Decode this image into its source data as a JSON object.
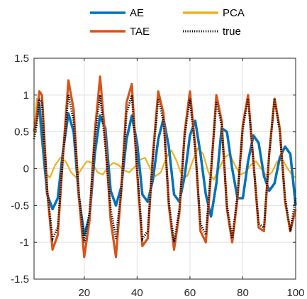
{
  "chart_data": {
    "type": "line",
    "title": "",
    "xlabel": "",
    "ylabel": "",
    "xlim": [
      1,
      100
    ],
    "ylim": [
      -1.5,
      1.5
    ],
    "xticks": [
      20,
      40,
      60,
      80,
      100
    ],
    "yticks": [
      -1.5,
      -1,
      -0.5,
      0,
      0.5,
      1,
      1.5
    ],
    "xtick_labels": [
      "20",
      "40",
      "60",
      "80",
      "100"
    ],
    "ytick_labels": [
      "-1.5",
      "-1",
      "-0.5",
      "0",
      "0.5",
      "1",
      "1.5"
    ],
    "grid": true,
    "legend_placement": "top-center",
    "series": [
      {
        "name": "AE",
        "color": "#0072BD",
        "x": [
          1,
          3,
          4,
          6,
          8,
          10,
          12,
          14,
          16,
          18,
          20,
          22,
          24,
          26,
          28,
          30,
          32,
          34,
          36,
          38,
          40,
          42,
          44,
          46,
          48,
          50,
          52,
          54,
          56,
          58,
          60,
          62,
          64,
          66,
          68,
          70,
          72,
          74,
          76,
          78,
          80,
          82,
          84,
          86,
          88,
          90,
          92,
          94,
          96,
          98,
          100
        ],
        "y": [
          0.5,
          0.88,
          0.45,
          -0.35,
          -0.55,
          -0.4,
          0.25,
          0.75,
          0.5,
          -0.4,
          -0.9,
          -0.65,
          0.2,
          0.72,
          0.55,
          -0.3,
          -0.5,
          -0.25,
          0.4,
          0.72,
          0.35,
          -0.35,
          -0.45,
          -0.15,
          0.4,
          0.68,
          0.3,
          -0.35,
          -0.45,
          -0.1,
          0.45,
          0.65,
          0.2,
          -0.35,
          -0.65,
          -0.2,
          0.55,
          0.5,
          0.0,
          -0.4,
          -0.4,
          0.1,
          0.45,
          0.35,
          -0.1,
          -0.3,
          -0.2,
          0.15,
          0.3,
          0.2,
          -0.5
        ]
      },
      {
        "name": "PCA",
        "color": "#EDB120",
        "x": [
          1,
          2,
          3,
          5,
          7,
          9,
          11,
          13,
          15,
          17,
          19,
          21,
          23,
          25,
          27,
          29,
          31,
          33,
          35,
          37,
          39,
          41,
          43,
          45,
          47,
          49,
          51,
          53,
          55,
          57,
          59,
          61,
          63,
          65,
          67,
          69,
          71,
          73,
          75,
          77,
          79,
          81,
          83,
          85,
          87,
          89,
          91,
          93,
          95,
          97,
          99,
          100
        ],
        "y": [
          0.45,
          0.95,
          0.7,
          -0.05,
          -0.12,
          0.05,
          0.15,
          0.1,
          -0.05,
          -0.12,
          0.0,
          0.1,
          0.08,
          -0.05,
          -0.08,
          0.02,
          0.08,
          0.05,
          -0.02,
          -0.05,
          0.02,
          0.12,
          0.15,
          0.0,
          -0.1,
          -0.05,
          0.15,
          0.25,
          0.1,
          -0.1,
          -0.1,
          0.1,
          0.28,
          0.2,
          -0.05,
          -0.15,
          0.0,
          0.15,
          0.2,
          0.05,
          -0.08,
          -0.05,
          0.05,
          0.1,
          0.0,
          -0.1,
          -0.05,
          0.1,
          0.12,
          0.0,
          -0.1,
          -0.12
        ]
      },
      {
        "name": "TAE",
        "color": "#D95319",
        "x": [
          1,
          2,
          3,
          4,
          6,
          8,
          10,
          12,
          14,
          16,
          18,
          20,
          22,
          24,
          26,
          28,
          30,
          32,
          34,
          36,
          38,
          40,
          42,
          44,
          46,
          48,
          50,
          52,
          54,
          56,
          58,
          60,
          62,
          64,
          66,
          68,
          70,
          72,
          74,
          76,
          78,
          80,
          82,
          84,
          86,
          88,
          90,
          92,
          94,
          96,
          98,
          100
        ],
        "y": [
          0.5,
          0.7,
          1.05,
          1.0,
          -0.3,
          -1.1,
          -0.9,
          0.2,
          1.2,
          0.8,
          -0.4,
          -1.2,
          -0.7,
          0.5,
          1.25,
          0.4,
          -0.7,
          -1.2,
          -0.3,
          0.9,
          1.15,
          -0.05,
          -1.05,
          -0.95,
          0.2,
          1.05,
          0.75,
          -0.5,
          -1.1,
          -0.6,
          0.5,
          1.05,
          0.3,
          -0.85,
          -1.0,
          -0.05,
          1.0,
          0.65,
          -0.55,
          -1.0,
          -0.4,
          0.6,
          1.0,
          0.1,
          -0.8,
          -0.85,
          0.2,
          0.95,
          0.55,
          -0.45,
          -0.85,
          -0.55
        ]
      },
      {
        "name": "true",
        "color": "#000000",
        "x": [
          1,
          2,
          3,
          4,
          6,
          8,
          10,
          12,
          14,
          16,
          18,
          20,
          22,
          24,
          26,
          28,
          30,
          32,
          34,
          36,
          38,
          40,
          42,
          44,
          46,
          48,
          50,
          52,
          54,
          56,
          58,
          60,
          62,
          64,
          66,
          68,
          70,
          72,
          74,
          76,
          78,
          80,
          82,
          84,
          86,
          88,
          90,
          92,
          94,
          96,
          98,
          100
        ],
        "y": [
          0.4,
          0.6,
          0.95,
          0.9,
          -0.3,
          -0.95,
          -0.8,
          0.2,
          1.0,
          0.65,
          -0.35,
          -1.0,
          -0.6,
          0.4,
          1.0,
          0.3,
          -0.55,
          -0.95,
          -0.3,
          0.75,
          1.0,
          0.0,
          -0.95,
          -0.85,
          0.15,
          0.95,
          0.65,
          -0.45,
          -1.0,
          -0.55,
          0.45,
          0.95,
          0.25,
          -0.75,
          -0.9,
          0.0,
          0.9,
          0.6,
          -0.5,
          -0.95,
          -0.35,
          0.55,
          0.95,
          0.1,
          -0.75,
          -0.8,
          0.2,
          0.95,
          0.5,
          -0.4,
          -0.85,
          -0.4
        ]
      }
    ],
    "legend": [
      {
        "name": "AE",
        "color": "#0072BD",
        "dash": "solid"
      },
      {
        "name": "PCA",
        "color": "#EDB120",
        "dash": "solid"
      },
      {
        "name": "TAE",
        "color": "#D95319",
        "dash": "solid"
      },
      {
        "name": "true",
        "color": "#000000",
        "dash": "dotted"
      }
    ]
  }
}
